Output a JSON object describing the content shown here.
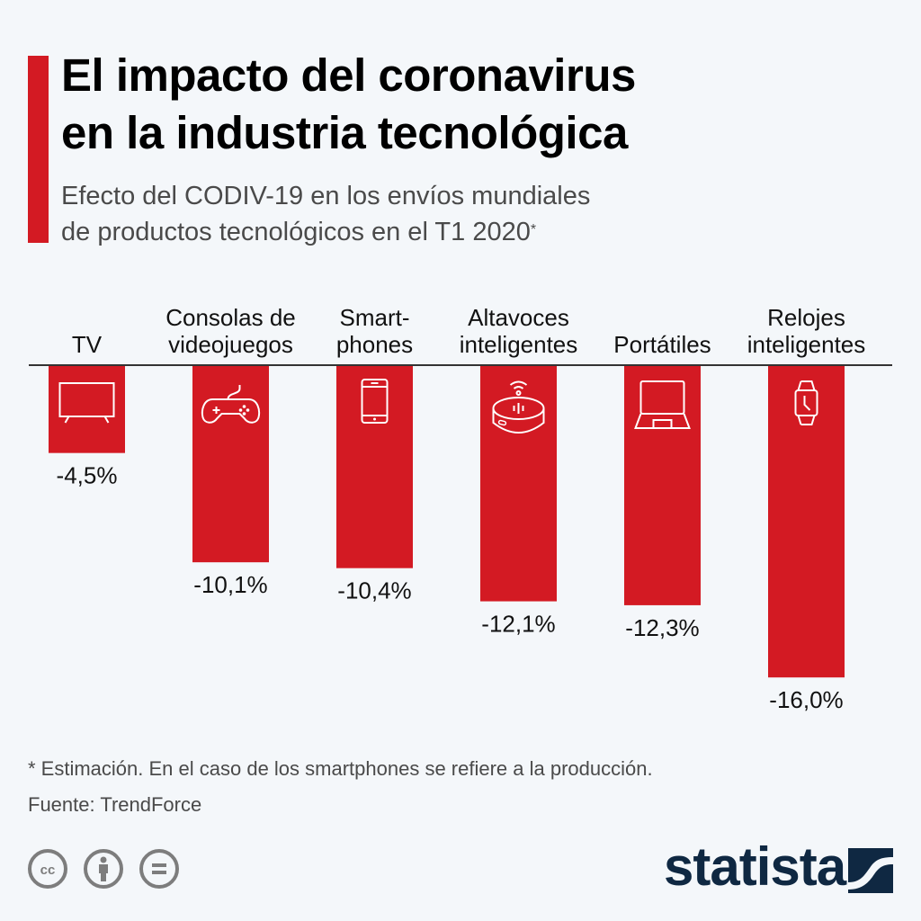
{
  "header": {
    "title_line1": "El impacto del coronavirus",
    "title_line2": "en la industria tecnológica",
    "subtitle_line1": "Efecto del CODIV-19 en los envíos mundiales",
    "subtitle_line2": "de productos tecnológicos en el T1 2020",
    "subtitle_mark": "*"
  },
  "colors": {
    "bar": "#d31a23",
    "accent": "#d31a23",
    "background": "#f4f7fa",
    "brand": "#0f2842"
  },
  "chart_data": {
    "type": "bar",
    "orientation": "vertical-negative",
    "title": "El impacto del coronavirus en la industria tecnológica",
    "subtitle": "Efecto del CODIV-19 en los envíos mundiales de productos tecnológicos en el T1 2020*",
    "categories": [
      [
        "TV"
      ],
      [
        "Consolas de",
        "videojuegos"
      ],
      [
        "Smart-",
        "phones"
      ],
      [
        "Altavoces",
        "inteligentes"
      ],
      [
        "Portátiles"
      ],
      [
        "Relojes",
        "inteligentes"
      ]
    ],
    "icons": [
      "tv-icon",
      "gamepad-icon",
      "smartphone-icon",
      "smart-speaker-icon",
      "laptop-icon",
      "smartwatch-icon"
    ],
    "values": [
      -4.5,
      -10.1,
      -10.4,
      -12.1,
      -12.3,
      -16.0
    ],
    "labels": [
      "-4,5%",
      "-10,1%",
      "-10,4%",
      "-12,1%",
      "-12,3%",
      "-16,0%"
    ],
    "unit": "%",
    "ylim": [
      -16,
      0
    ],
    "grid": false,
    "legend": "none",
    "xlabel": "",
    "ylabel": ""
  },
  "footer": {
    "note": "* Estimación. En el caso de los smartphones se refiere a la producción.",
    "source": "Fuente: TrendForce",
    "license_icons": [
      "cc-icon",
      "attribution-icon",
      "no-derivatives-icon"
    ],
    "brand": "statista"
  }
}
